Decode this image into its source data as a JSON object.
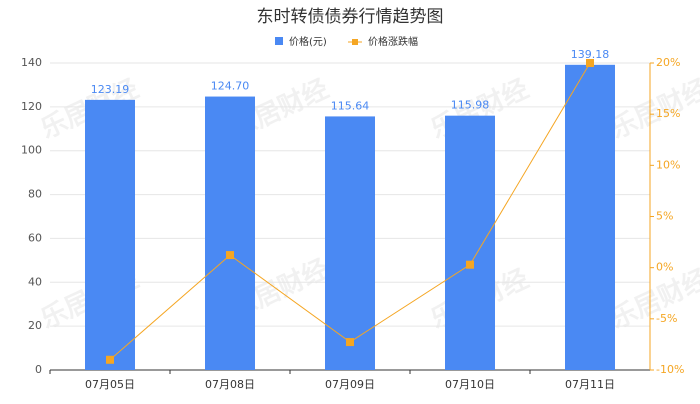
{
  "chart_data": {
    "type": "bar_line",
    "title": "东时转债债券行情趋势图",
    "watermark": "乐居财经",
    "categories": [
      "07月05日",
      "07月08日",
      "07月09日",
      "07月10日",
      "07月11日"
    ],
    "series": [
      {
        "name": "价格(元)",
        "type": "bar",
        "color": "#4a89f3",
        "values": [
          123.19,
          124.7,
          115.64,
          115.98,
          139.18
        ],
        "value_labels": [
          "123.19",
          "124.70",
          "115.64",
          "115.98",
          "139.18"
        ]
      },
      {
        "name": "价格涨跌幅",
        "type": "line",
        "axis": "y2",
        "color": "#f5a623",
        "values": [
          -9.0,
          1.23,
          -7.27,
          0.29,
          20.0
        ]
      }
    ],
    "ylim": [
      0,
      140
    ],
    "yticks": [
      0,
      20,
      40,
      60,
      80,
      100,
      120,
      140
    ],
    "y2lim": [
      -10,
      20
    ],
    "y2ticks": [
      {
        "value": -10,
        "label": "-10%"
      },
      {
        "value": -5,
        "label": "-5%"
      },
      {
        "value": 0,
        "label": "0%"
      },
      {
        "value": 5,
        "label": "5%"
      },
      {
        "value": 10,
        "label": "10%"
      },
      {
        "value": 15,
        "label": "15%"
      },
      {
        "value": 20,
        "label": "20%"
      }
    ],
    "grid": true
  }
}
